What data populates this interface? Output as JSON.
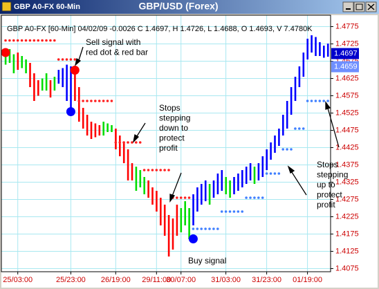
{
  "window": {
    "title": "GBP A0-FX 60-Min",
    "heading": "GBP/USD (Forex)"
  },
  "chart_data": {
    "type": "hilo",
    "header": "GBP A0-FX [60-Min] 04/02/09 -0.0026 C 1.4697, H 1.4726, L 1.4688, O 1.4693, V 7.4780K",
    "categories": [
      null,
      null,
      null,
      "25/03:00",
      null,
      null,
      null,
      null,
      null,
      null,
      null,
      null,
      null,
      null,
      null,
      null,
      "25/23:00",
      null,
      null,
      null,
      null,
      null,
      null,
      null,
      null,
      null,
      null,
      "26/19:00",
      null,
      null,
      null,
      null,
      null,
      null,
      null,
      null,
      null,
      "29/11:00",
      null,
      null,
      null,
      null,
      null,
      "30/07:00",
      null,
      null,
      null,
      null,
      null,
      null,
      null,
      null,
      null,
      null,
      "31/03:00",
      null,
      null,
      null,
      null,
      null,
      null,
      null,
      null,
      null,
      "31/23:00",
      null,
      null,
      null,
      null,
      null,
      null,
      null,
      null,
      null,
      "01/19:00",
      null,
      null,
      null,
      null,
      null
    ],
    "high": [
      1.47,
      1.471,
      1.4695,
      1.47,
      1.469,
      1.468,
      1.467,
      1.464,
      1.462,
      1.4625,
      1.464,
      1.462,
      1.463,
      1.465,
      1.4655,
      1.4665,
      1.466,
      1.4645,
      1.46,
      1.454,
      1.452,
      1.45,
      1.4495,
      1.449,
      1.45,
      1.4495,
      1.449,
      1.448,
      1.446,
      1.444,
      1.442,
      1.438,
      1.437,
      1.436,
      1.434,
      1.433,
      1.431,
      1.43,
      1.428,
      1.426,
      1.423,
      1.422,
      1.426,
      1.425,
      1.427,
      1.425,
      1.429,
      1.431,
      1.432,
      1.433,
      1.432,
      1.433,
      1.435,
      1.436,
      1.434,
      1.433,
      1.434,
      1.435,
      1.436,
      1.437,
      1.438,
      1.437,
      1.438,
      1.44,
      1.442,
      1.444,
      1.446,
      1.448,
      1.452,
      1.456,
      1.46,
      1.463,
      1.466,
      1.47,
      1.474,
      1.475,
      1.4745,
      1.473,
      1.472,
      1.4726
    ],
    "low": [
      1.4665,
      1.467,
      1.464,
      1.465,
      1.4655,
      1.464,
      1.46,
      1.456,
      1.4575,
      1.459,
      1.459,
      1.457,
      1.459,
      1.461,
      1.46,
      1.456,
      1.454,
      1.456,
      1.45,
      1.448,
      1.446,
      1.445,
      1.4455,
      1.446,
      1.446,
      1.447,
      1.447,
      1.442,
      1.44,
      1.438,
      1.433,
      1.433,
      1.43,
      1.431,
      1.429,
      1.428,
      1.426,
      1.424,
      1.42,
      1.417,
      1.411,
      1.413,
      1.417,
      1.418,
      1.42,
      1.416,
      1.42,
      1.424,
      1.426,
      1.427,
      1.426,
      1.428,
      1.429,
      1.43,
      1.429,
      1.428,
      1.429,
      1.43,
      1.431,
      1.432,
      1.433,
      1.432,
      1.433,
      1.434,
      1.436,
      1.439,
      1.441,
      1.443,
      1.446,
      1.448,
      1.452,
      1.456,
      1.46,
      1.463,
      1.468,
      1.47,
      1.469,
      1.469,
      1.4685,
      1.4688
    ],
    "bar_colors": [
      "#00dd00",
      "#00dd00",
      "#00dd00",
      "#ff0000",
      "#00dd00",
      "#00dd00",
      "#ff0000",
      "#ff0000",
      "#ff0000",
      "#00dd00",
      "#00dd00",
      "#ff0000",
      "#00dd00",
      "#0000ff",
      "#0000ff",
      "#0000ff",
      "#0000ff",
      "#ff0000",
      "#ff0000",
      "#ff0000",
      "#ff0000",
      "#ff0000",
      "#ff0000",
      "#ff0000",
      "#00dd00",
      "#00dd00",
      "#00dd00",
      "#ff0000",
      "#ff0000",
      "#ff0000",
      "#ff0000",
      "#ff0000",
      "#00dd00",
      "#00dd00",
      "#00dd00",
      "#ff0000",
      "#ff0000",
      "#ff0000",
      "#ff0000",
      "#ff0000",
      "#ff0000",
      "#ff0000",
      "#ff0000",
      "#00dd00",
      "#00dd00",
      "#00dd00",
      "#0000ff",
      "#0000ff",
      "#0000ff",
      "#0000ff",
      "#00dd00",
      "#0000ff",
      "#0000ff",
      "#0000ff",
      "#00dd00",
      "#00dd00",
      "#0000ff",
      "#0000ff",
      "#0000ff",
      "#0000ff",
      "#0000ff",
      "#00dd00",
      "#0000ff",
      "#0000ff",
      "#0000ff",
      "#0000ff",
      "#0000ff",
      "#0000ff",
      "#0000ff",
      "#0000ff",
      "#0000ff",
      "#0000ff",
      "#0000ff",
      "#0000ff",
      "#0000ff",
      "#0000ff",
      "#0000ff",
      "#0000ff",
      "#0000ff",
      "#0000ff"
    ],
    "stops": [
      {
        "color": "#ff2020",
        "values": [
          1.4735,
          1.4735,
          1.4735,
          1.4735,
          1.4735,
          1.4735,
          1.4735,
          1.4735,
          1.4735,
          1.4735,
          1.4735,
          1.4735,
          1.4735,
          1.468,
          1.468,
          1.468,
          1.468,
          1.468,
          1.456,
          1.456,
          1.456,
          1.456,
          1.456,
          1.456,
          1.456,
          1.456,
          1.456,
          1.444,
          1.444,
          1.444,
          1.444,
          1.444,
          1.444,
          1.444,
          1.436,
          1.436,
          1.436,
          1.436,
          1.436,
          1.436,
          1.436,
          1.428,
          1.428,
          1.428,
          1.428,
          1.428,
          null,
          null,
          null,
          null,
          null,
          null,
          null,
          null,
          null,
          null,
          null,
          null,
          null,
          null,
          null,
          null,
          null,
          null,
          null,
          null,
          null,
          null,
          null,
          null,
          null,
          null,
          null,
          null,
          null,
          null,
          null,
          null,
          null,
          null
        ]
      },
      {
        "color": "#4080ff",
        "values": [
          null,
          null,
          null,
          null,
          null,
          null,
          null,
          null,
          null,
          null,
          null,
          null,
          null,
          null,
          null,
          null,
          null,
          null,
          null,
          null,
          null,
          null,
          null,
          null,
          null,
          null,
          null,
          null,
          null,
          null,
          null,
          null,
          null,
          null,
          null,
          null,
          null,
          null,
          null,
          null,
          null,
          null,
          null,
          null,
          null,
          null,
          1.419,
          1.419,
          1.419,
          1.419,
          1.419,
          1.419,
          1.419,
          1.424,
          1.424,
          1.424,
          1.424,
          1.424,
          1.424,
          1.428,
          1.428,
          1.428,
          1.428,
          1.428,
          1.435,
          1.435,
          1.435,
          1.435,
          1.442,
          1.442,
          1.442,
          1.448,
          1.448,
          1.448,
          1.456,
          1.456,
          1.456,
          1.456,
          1.456,
          1.456
        ]
      }
    ],
    "signals": [
      {
        "x": 0,
        "y": 1.47,
        "color": "#ff0000"
      },
      {
        "x": 17,
        "y": 1.4649,
        "color": "#ff0000"
      },
      {
        "x": 16,
        "y": 1.4529,
        "color": "#0000ff"
      },
      {
        "x": 46,
        "y": 1.4161,
        "color": "#0000ff"
      }
    ],
    "price_tags": [
      {
        "value": 1.4697,
        "color": "#0000cc"
      },
      {
        "value": 1.4659,
        "color": "#6f8fff"
      }
    ],
    "ylim": [
      1.4066,
      1.4808
    ],
    "yticks": [
      1.4075,
      1.4125,
      1.4175,
      1.4225,
      1.4275,
      1.4325,
      1.4375,
      1.4425,
      1.4475,
      1.4525,
      1.4575,
      1.4625,
      1.4675,
      1.4725,
      1.4775
    ],
    "grid": true,
    "annotations": [
      [
        "Sell signal with",
        "red dot & red bar"
      ],
      [
        "Stops",
        "stepping",
        "down to",
        "protect",
        "profit"
      ],
      [
        "Buy signal"
      ],
      [
        "Stops",
        "stepping",
        "up to",
        "protect",
        "profit"
      ]
    ]
  }
}
